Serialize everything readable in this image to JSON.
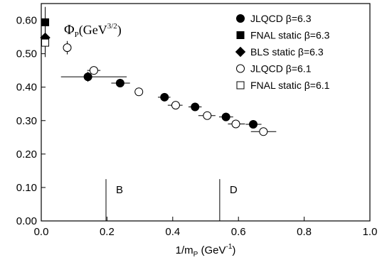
{
  "chart_data": {
    "type": "scatter",
    "title": "",
    "in_plot_label": {
      "main": "Φ",
      "sub": "P",
      "rest": "(GeV",
      "sup": "3/2",
      "close": ")"
    },
    "xlabel": {
      "main": "1/m",
      "sub": "P",
      "rest": " (GeV",
      "sup": "-1",
      "close": ")"
    },
    "ylabel": "",
    "xlim": [
      0.0,
      1.0
    ],
    "ylim": [
      0.0,
      0.65
    ],
    "x_ticks": [
      "0.0",
      "0.2",
      "0.4",
      "0.6",
      "0.8",
      "1.0"
    ],
    "x_tick_values": [
      0.0,
      0.2,
      0.4,
      0.6,
      0.8,
      1.0
    ],
    "y_ticks": [
      "0.00",
      "0.10",
      "0.20",
      "0.30",
      "0.40",
      "0.50",
      "0.60"
    ],
    "y_tick_values": [
      0.0,
      0.1,
      0.2,
      0.3,
      0.4,
      0.5,
      0.6
    ],
    "grid": false,
    "legend_position": "top-right",
    "vertical_markers": [
      {
        "label": "B",
        "x": 0.197
      },
      {
        "label": "D",
        "x": 0.543
      }
    ],
    "series": [
      {
        "name": "JLQCD  β=6.3",
        "marker": "filled-circle",
        "points": [
          {
            "x": 0.142,
            "y": 0.431,
            "xlo": 0.06,
            "xhi": 0.26,
            "ylo": 0.416,
            "yhi": 0.446
          },
          {
            "x": 0.24,
            "y": 0.412,
            "xlo": 0.213,
            "xhi": 0.27,
            "ylo": 0.402,
            "yhi": 0.422
          },
          {
            "x": 0.375,
            "y": 0.37,
            "xlo": 0.355,
            "xhi": 0.393,
            "ylo": 0.362,
            "yhi": 0.378
          },
          {
            "x": 0.468,
            "y": 0.341,
            "xlo": 0.448,
            "xhi": 0.488,
            "ylo": 0.333,
            "yhi": 0.349
          },
          {
            "x": 0.562,
            "y": 0.311,
            "xlo": 0.541,
            "xhi": 0.584,
            "ylo": 0.303,
            "yhi": 0.319
          },
          {
            "x": 0.645,
            "y": 0.289,
            "xlo": 0.622,
            "xhi": 0.67,
            "ylo": 0.281,
            "yhi": 0.297
          }
        ]
      },
      {
        "name": "FNAL  static β=6.3",
        "marker": "filled-square",
        "points": [
          {
            "x": 0.012,
            "y": 0.594,
            "ylo": 0.555,
            "yhi": 0.64
          }
        ]
      },
      {
        "name": "BLS  static  β=6.3",
        "marker": "filled-diamond",
        "points": [
          {
            "x": 0.012,
            "y": 0.548,
            "ylo": 0.505,
            "yhi": 0.59
          }
        ]
      },
      {
        "name": "JLQCD  β=6.1",
        "marker": "open-circle",
        "points": [
          {
            "x": 0.079,
            "y": 0.518,
            "ylo": 0.498,
            "yhi": 0.538
          },
          {
            "x": 0.16,
            "y": 0.45,
            "xlo": 0.14,
            "xhi": 0.18,
            "ylo": 0.44,
            "yhi": 0.46
          },
          {
            "x": 0.297,
            "y": 0.386,
            "ylo": 0.376,
            "yhi": 0.396
          },
          {
            "x": 0.409,
            "y": 0.346,
            "xlo": 0.385,
            "xhi": 0.43,
            "ylo": 0.338,
            "yhi": 0.354
          },
          {
            "x": 0.505,
            "y": 0.315,
            "xlo": 0.478,
            "xhi": 0.53,
            "ylo": 0.307,
            "yhi": 0.323
          },
          {
            "x": 0.592,
            "y": 0.29,
            "xlo": 0.568,
            "xhi": 0.62,
            "ylo": 0.282,
            "yhi": 0.298
          },
          {
            "x": 0.676,
            "y": 0.267,
            "xlo": 0.638,
            "xhi": 0.715,
            "ylo": 0.259,
            "yhi": 0.275
          }
        ]
      },
      {
        "name": "FNAL static β=6.1",
        "marker": "open-square",
        "points": [
          {
            "x": 0.012,
            "y": 0.533,
            "ylo": 0.49,
            "yhi": 0.57
          }
        ]
      }
    ]
  }
}
